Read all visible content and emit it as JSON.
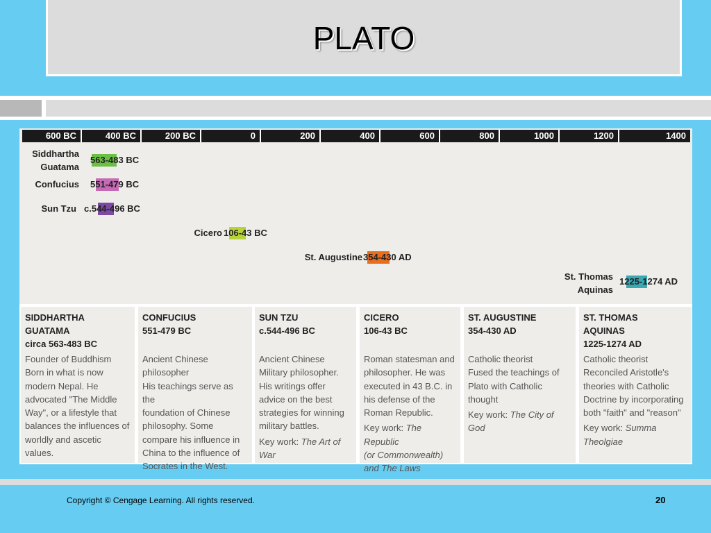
{
  "slide": {
    "title": "PLATO",
    "copyright": "Copyright © Cengage Learning. All rights reserved.",
    "page_number": "20"
  },
  "timeline": {
    "ticks": [
      "600 BC",
      "400 BC",
      "200 BC",
      "0",
      "200",
      "400",
      "600",
      "800",
      "1000",
      "1200",
      "1400"
    ],
    "items": [
      {
        "name_line1": "Siddhartha",
        "name_line2": "Guatama",
        "dates": "563-483 BC",
        "color": "#6cbf45"
      },
      {
        "name_line1": "Confucius",
        "dates": "551-479 BC",
        "color": "#c56ab4"
      },
      {
        "name_line1": "Sun Tzu",
        "dates": "c.544-496 BC",
        "color": "#7b4aa3"
      },
      {
        "name_line1": "Cicero",
        "dates": "106-43 BC",
        "color": "#b6d43a"
      },
      {
        "name_line1": "St. Augustine",
        "dates": "354-430 AD",
        "color": "#e86d1f"
      },
      {
        "name_line1": "St. Thomas",
        "name_line2": "Aquinas",
        "dates": "1225-1274 AD",
        "color": "#3aa9b3"
      }
    ]
  },
  "cards": [
    {
      "head": [
        "SIDDHARTHA",
        "GUATAMA",
        "circa 563-483 BC"
      ],
      "body": [
        "Founder of Buddhism",
        "Born in what is now",
        "modern Nepal. He",
        "advocated \"The Middle",
        "Way\", or a lifestyle that",
        "balances the influences of",
        "worldly and ascetic values."
      ]
    },
    {
      "head": [
        "CONFUCIUS",
        "551-479 BC"
      ],
      "body": [
        "Ancient Chinese",
        "philosopher",
        "His teachings serve as the",
        "foundation of Chinese",
        "philosophy. Some",
        "compare his influence in",
        "China to the influence of",
        "Socrates in the West."
      ]
    },
    {
      "head": [
        "SUN TZU",
        "c.544-496 BC"
      ],
      "body": [
        "Ancient Chinese",
        "Military philosopher.",
        "His writings offer",
        "advice on the best",
        "strategies for winning",
        "military battles."
      ],
      "key_label": "Key work: ",
      "key_work": [
        "The Art of",
        "War"
      ]
    },
    {
      "head": [
        "CICERO",
        "106-43 BC"
      ],
      "body": [
        "Roman statesman and",
        "philosopher. He was",
        "executed in 43 B.C. in",
        "his defense of the",
        "Roman Republic."
      ],
      "key_label": "Key work: ",
      "key_work": [
        "The Republic",
        "(or Commonwealth)",
        "and The Laws"
      ]
    },
    {
      "head": [
        "ST. AUGUSTINE",
        "354-430 AD"
      ],
      "body": [
        "Catholic theorist",
        "Fused the teachings of",
        "Plato with Catholic",
        "thought"
      ],
      "key_label": "Key work: ",
      "key_work": [
        "The City of God"
      ]
    },
    {
      "head": [
        "ST. THOMAS",
        "AQUINAS",
        "1225-1274 AD"
      ],
      "body": [
        "Catholic theorist",
        "Reconciled Aristotle's",
        "theories with Catholic",
        "Doctrine by incorporating",
        "both \"faith\" and \"reason\""
      ],
      "key_label": "Key work: ",
      "key_work": [
        "Summa",
        "Theolgiae"
      ]
    }
  ]
}
